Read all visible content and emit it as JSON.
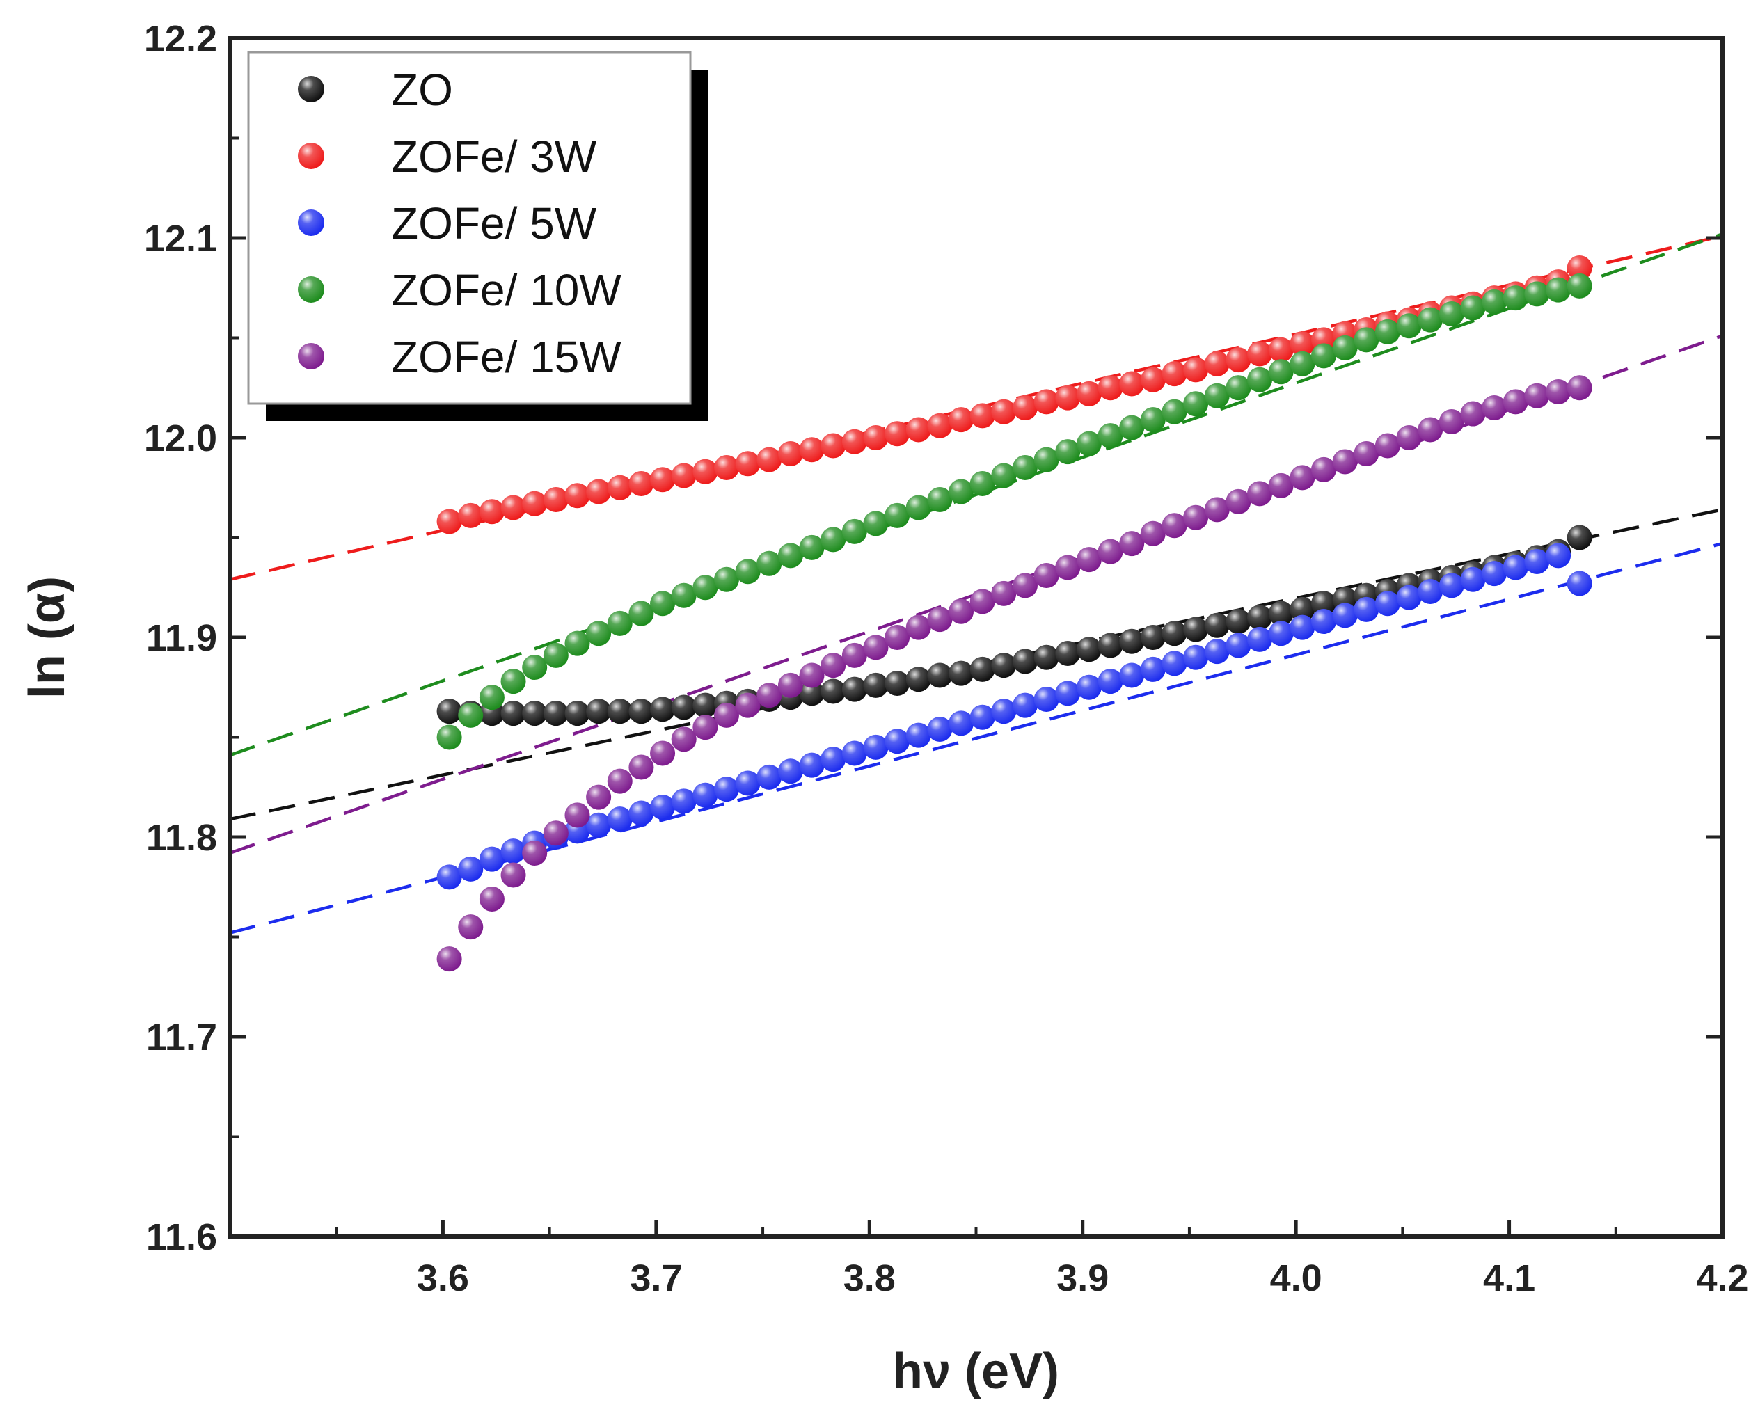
{
  "chart_data": {
    "type": "scatter",
    "title": "",
    "xlabel": "hν (eV)",
    "ylabel": "ln (α)",
    "xlim": [
      3.5,
      4.2
    ],
    "ylim": [
      11.6,
      12.2
    ],
    "xticks": [
      3.6,
      3.7,
      3.8,
      3.9,
      4.0,
      4.1,
      4.2
    ],
    "xtick_labels": [
      "3.6",
      "3.7",
      "3.8",
      "3.9",
      "4.0",
      "4.1",
      "4.2"
    ],
    "yticks": [
      11.6,
      11.7,
      11.8,
      11.9,
      12.0,
      12.1,
      12.2
    ],
    "ytick_labels": [
      "11.6",
      "11.7",
      "11.8",
      "11.9",
      "12.0",
      "12.1",
      "12.2"
    ],
    "legend_position": "top-left",
    "x": [
      3.603,
      3.613,
      3.623,
      3.633,
      3.643,
      3.653,
      3.663,
      3.673,
      3.683,
      3.693,
      3.703,
      3.713,
      3.723,
      3.733,
      3.743,
      3.753,
      3.763,
      3.773,
      3.783,
      3.793,
      3.803,
      3.813,
      3.823,
      3.833,
      3.843,
      3.853,
      3.863,
      3.873,
      3.883,
      3.893,
      3.903,
      3.913,
      3.923,
      3.933,
      3.943,
      3.953,
      3.963,
      3.973,
      3.983,
      3.993,
      4.003,
      4.013,
      4.023,
      4.033,
      4.043,
      4.053,
      4.063,
      4.073,
      4.083,
      4.093,
      4.103,
      4.113,
      4.123,
      4.133
    ],
    "series": [
      {
        "name": "ZO",
        "color": "#111111",
        "values": [
          11.863,
          11.862,
          11.862,
          11.862,
          11.862,
          11.862,
          11.862,
          11.863,
          11.863,
          11.863,
          11.864,
          11.865,
          11.866,
          11.867,
          11.868,
          11.869,
          11.87,
          11.872,
          11.873,
          11.874,
          11.876,
          11.877,
          11.879,
          11.881,
          11.882,
          11.884,
          11.886,
          11.888,
          11.89,
          11.892,
          11.894,
          11.896,
          11.898,
          11.9,
          11.902,
          11.904,
          11.906,
          11.908,
          11.91,
          11.912,
          11.914,
          11.917,
          11.919,
          11.921,
          11.923,
          11.926,
          11.928,
          11.93,
          11.932,
          11.935,
          11.937,
          11.94,
          11.943,
          11.95
        ],
        "fit": {
          "x": [
            3.5,
            4.2
          ],
          "y": [
            11.809,
            11.964
          ]
        }
      },
      {
        "name": "ZOFe/ 3W",
        "color": "#ee1c1c",
        "values": [
          11.958,
          11.961,
          11.963,
          11.965,
          11.967,
          11.969,
          11.971,
          11.973,
          11.975,
          11.977,
          11.979,
          11.981,
          11.983,
          11.985,
          11.987,
          11.989,
          11.992,
          11.994,
          11.996,
          11.998,
          12.0,
          12.002,
          12.004,
          12.006,
          12.009,
          12.011,
          12.013,
          12.015,
          12.018,
          12.02,
          12.022,
          12.025,
          12.027,
          12.029,
          12.032,
          12.034,
          12.037,
          12.039,
          12.042,
          12.044,
          12.047,
          12.049,
          12.052,
          12.054,
          12.057,
          12.059,
          12.062,
          12.065,
          12.067,
          12.07,
          12.072,
          12.075,
          12.078,
          12.085
        ],
        "fit": {
          "x": [
            3.5,
            4.2
          ],
          "y": [
            11.929,
            12.101
          ]
        }
      },
      {
        "name": "ZOFe/ 5W",
        "color": "#1c2cee",
        "values": [
          11.78,
          11.784,
          11.789,
          11.793,
          11.797,
          11.8,
          11.803,
          11.806,
          11.809,
          11.812,
          11.815,
          11.818,
          11.821,
          11.824,
          11.827,
          11.83,
          11.833,
          11.836,
          11.839,
          11.842,
          11.845,
          11.848,
          11.851,
          11.854,
          11.857,
          11.86,
          11.863,
          11.866,
          11.869,
          11.872,
          11.875,
          11.878,
          11.881,
          11.884,
          11.887,
          11.89,
          11.893,
          11.896,
          11.899,
          11.902,
          11.905,
          11.908,
          11.911,
          11.914,
          11.917,
          11.92,
          11.923,
          11.926,
          11.929,
          11.932,
          11.935,
          11.938,
          11.941,
          11.927
        ],
        "fit": {
          "x": [
            3.5,
            4.2
          ],
          "y": [
            11.752,
            11.947
          ]
        }
      },
      {
        "name": "ZOFe/ 10W",
        "color": "#1e8c1e",
        "values": [
          11.85,
          11.861,
          11.87,
          11.878,
          11.885,
          11.891,
          11.897,
          11.902,
          11.907,
          11.912,
          11.917,
          11.921,
          11.925,
          11.929,
          11.933,
          11.937,
          11.941,
          11.945,
          11.949,
          11.953,
          11.957,
          11.961,
          11.965,
          11.969,
          11.973,
          11.977,
          11.981,
          11.985,
          11.989,
          11.993,
          11.997,
          12.001,
          12.005,
          12.009,
          12.013,
          12.017,
          12.021,
          12.025,
          12.029,
          12.033,
          12.037,
          12.041,
          12.045,
          12.049,
          12.053,
          12.056,
          12.059,
          12.062,
          12.065,
          12.068,
          12.07,
          12.072,
          12.074,
          12.076
        ],
        "fit": {
          "x": [
            3.5,
            4.2
          ],
          "y": [
            11.841,
            12.102
          ]
        }
      },
      {
        "name": "ZOFe/ 15W",
        "color": "#7e1c8e",
        "values": [
          11.739,
          11.755,
          11.769,
          11.781,
          11.792,
          11.802,
          11.811,
          11.82,
          11.828,
          11.835,
          11.842,
          11.849,
          11.855,
          11.861,
          11.866,
          11.871,
          11.876,
          11.881,
          11.886,
          11.891,
          11.895,
          11.9,
          11.905,
          11.909,
          11.913,
          11.918,
          11.922,
          11.926,
          11.931,
          11.935,
          11.939,
          11.943,
          11.947,
          11.952,
          11.956,
          11.96,
          11.964,
          11.968,
          11.972,
          11.976,
          11.98,
          11.984,
          11.988,
          11.992,
          11.996,
          12.0,
          12.004,
          12.008,
          12.012,
          12.015,
          12.018,
          12.021,
          12.023,
          12.025
        ],
        "fit": {
          "x": [
            3.5,
            4.2
          ],
          "y": [
            11.792,
            12.051
          ]
        }
      }
    ]
  }
}
